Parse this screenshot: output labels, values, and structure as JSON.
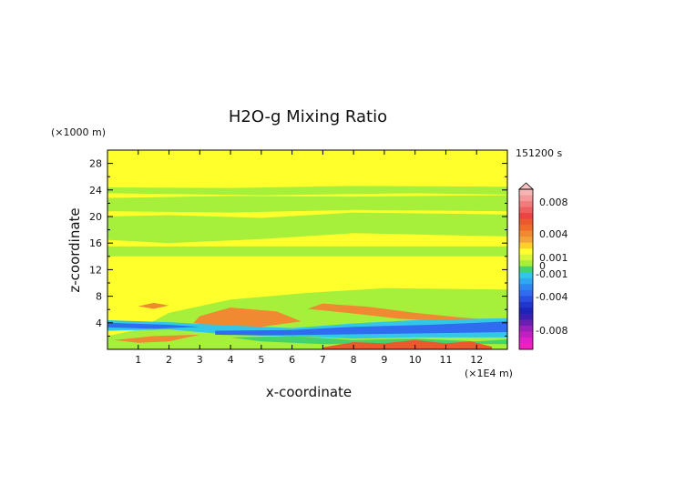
{
  "chart_data": {
    "type": "heatmap",
    "title": "H2O-g Mixing Ratio",
    "time_label": "151200 s",
    "xlabel": "x-coordinate",
    "ylabel": "z-coordinate",
    "x_unit": "(×1E4 m)",
    "y_unit": "(×1000 m)",
    "xlim": [
      0,
      13
    ],
    "ylim": [
      0,
      30
    ],
    "x_ticks": [
      "1",
      "2",
      "3",
      "4",
      "5",
      "6",
      "7",
      "8",
      "9",
      "10",
      "11",
      "12"
    ],
    "y_ticks": [
      "4",
      "8",
      "12",
      "16",
      "20",
      "24",
      "28"
    ],
    "colorbar_labels": [
      "0.008",
      "0.004",
      "0.001",
      "0",
      "-0.001",
      "-0.004",
      "-0.008"
    ],
    "colors": {
      "background_level": "#ffff2b",
      "light_green": "#a6ef3a",
      "green": "#43d26b",
      "cyan": "#33c7e6",
      "blue": "#2f6cf0",
      "orange": "#ef8a33",
      "red_orange": "#ea5a2d"
    },
    "regions": [
      {
        "level": "light_green",
        "x": [
          [
            0,
            14
          ],
          [
            13,
            14
          ],
          [
            13,
            15.5
          ],
          [
            0,
            15.5
          ]
        ]
      },
      {
        "level": "light_green",
        "x": [
          [
            0,
            16.5
          ],
          [
            2,
            16
          ],
          [
            5,
            16.6
          ],
          [
            8,
            17.5
          ],
          [
            13,
            17
          ],
          [
            13,
            20.3
          ],
          [
            8,
            20.6
          ],
          [
            5,
            19.8
          ],
          [
            2,
            20.2
          ],
          [
            0,
            20
          ]
        ]
      },
      {
        "level": "light_green",
        "x": [
          [
            0,
            20.8
          ],
          [
            4,
            20.6
          ],
          [
            8,
            21
          ],
          [
            13,
            20.8
          ],
          [
            13,
            23.2
          ],
          [
            8,
            23
          ],
          [
            4,
            23.1
          ],
          [
            0,
            22.8
          ]
        ]
      },
      {
        "level": "light_green",
        "x": [
          [
            0,
            23.5
          ],
          [
            5,
            23.2
          ],
          [
            10,
            23.5
          ],
          [
            13,
            23.3
          ],
          [
            13,
            24.5
          ],
          [
            8,
            24.6
          ],
          [
            4,
            24.3
          ],
          [
            0,
            24.4
          ]
        ]
      },
      {
        "level": "light_green",
        "x": [
          [
            0,
            2
          ],
          [
            1,
            3
          ],
          [
            2,
            5.5
          ],
          [
            4,
            7.5
          ],
          [
            6.5,
            8.5
          ],
          [
            9,
            9.2
          ],
          [
            13,
            9
          ],
          [
            13,
            0
          ],
          [
            0,
            0
          ]
        ]
      },
      {
        "level": "orange",
        "x": [
          [
            3,
            5
          ],
          [
            4,
            6.3
          ],
          [
            5.5,
            5.7
          ],
          [
            6.3,
            4.2
          ],
          [
            5,
            3.4
          ],
          [
            3.5,
            3.4
          ],
          [
            2.8,
            4
          ]
        ]
      },
      {
        "level": "orange",
        "x": [
          [
            6.5,
            6.1
          ],
          [
            7,
            6.9
          ],
          [
            8.5,
            6.4
          ],
          [
            10,
            5.5
          ],
          [
            11.5,
            4.8
          ],
          [
            12.3,
            4.5
          ],
          [
            11,
            4.2
          ],
          [
            9.5,
            4.6
          ],
          [
            8,
            5.4
          ]
        ]
      },
      {
        "level": "orange",
        "x": [
          [
            1,
            6.5
          ],
          [
            1.5,
            7
          ],
          [
            2,
            6.6
          ],
          [
            1.5,
            6.1
          ]
        ]
      },
      {
        "level": "orange",
        "x": [
          [
            0.2,
            1.4
          ],
          [
            1.5,
            2
          ],
          [
            3,
            2.2
          ],
          [
            2,
            1.2
          ],
          [
            1,
            1
          ]
        ]
      },
      {
        "level": "cyan",
        "x": [
          [
            0,
            4.4
          ],
          [
            2,
            4.1
          ],
          [
            4,
            3.6
          ],
          [
            6,
            3.2
          ],
          [
            8,
            3.9
          ],
          [
            10,
            4.4
          ],
          [
            13,
            4.7
          ],
          [
            13,
            1.8
          ],
          [
            10,
            1.8
          ],
          [
            8,
            1.6
          ],
          [
            6,
            2
          ],
          [
            4,
            2.2
          ],
          [
            2,
            3
          ],
          [
            0,
            2.8
          ]
        ]
      },
      {
        "level": "blue",
        "x": [
          [
            0,
            4
          ],
          [
            2,
            3.7
          ],
          [
            3,
            3.4
          ],
          [
            1.5,
            3.1
          ],
          [
            0,
            3.3
          ]
        ]
      },
      {
        "level": "blue",
        "x": [
          [
            3.5,
            2.8
          ],
          [
            6,
            2.9
          ],
          [
            8,
            3.4
          ],
          [
            10.5,
            3.7
          ],
          [
            13,
            4.2
          ],
          [
            13,
            2.6
          ],
          [
            10,
            2.4
          ],
          [
            7,
            2.2
          ],
          [
            5,
            2.1
          ],
          [
            3.5,
            2.2
          ]
        ]
      },
      {
        "level": "green",
        "x": [
          [
            4,
            1.8
          ],
          [
            6,
            2
          ],
          [
            8,
            1.4
          ],
          [
            10,
            1.6
          ],
          [
            12,
            1.2
          ],
          [
            13,
            1.5
          ],
          [
            13,
            0.8
          ],
          [
            10,
            0.9
          ],
          [
            7,
            0.8
          ],
          [
            5,
            1.2
          ]
        ]
      },
      {
        "level": "red_orange",
        "x": [
          [
            7,
            0.3
          ],
          [
            8,
            1.1
          ],
          [
            9,
            0.9
          ],
          [
            10,
            1.4
          ],
          [
            11,
            0.9
          ],
          [
            11.8,
            1.2
          ],
          [
            12.5,
            0.4
          ],
          [
            12.5,
            0
          ],
          [
            7,
            0
          ]
        ]
      }
    ]
  }
}
